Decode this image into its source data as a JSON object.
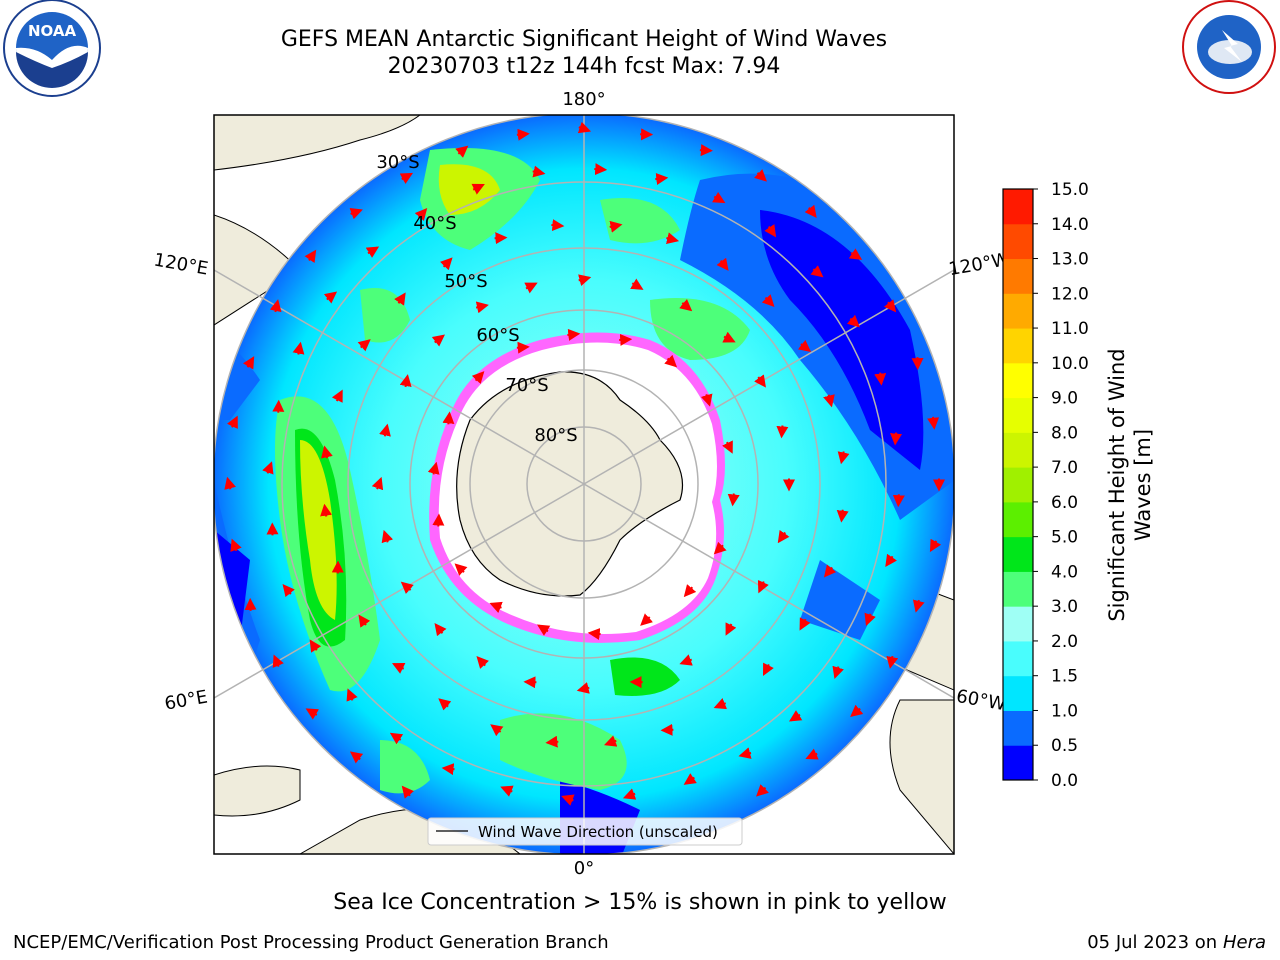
{
  "title": {
    "line1": "GEFS MEAN Antarctic Significant Height of Wind Waves",
    "line2": "20230703 t12z 144h fcst   Max: 7.94"
  },
  "logos": {
    "left": {
      "name": "noaa-logo",
      "text": "NOAA",
      "ring_text": "NATIONAL OCEANIC AND ATMOSPHERIC ADMINISTRATION · U.S. DEPARTMENT OF COMMERCE"
    },
    "right": {
      "name": "nws-logo",
      "ring_text": "NATIONAL WEATHER SERVICE"
    }
  },
  "map": {
    "projection": "south-polar-stereographic",
    "longitude_labels": {
      "top": "180°",
      "left_upper": "120°E",
      "right_upper": "120°W",
      "left_lower": "60°E",
      "right_lower": "60°W",
      "bottom": "0°"
    },
    "latitude_labels": [
      "30°S",
      "40°S",
      "50°S",
      "60°S",
      "70°S",
      "80°S"
    ],
    "legend": "Wind Wave Direction (unscaled)",
    "colors": {
      "land": "#efecdc",
      "ice_edge": "#ff66ff",
      "arrow": "#ff0000",
      "grid": "#b3b3b3"
    }
  },
  "colorbar": {
    "label": "Significant Height of Wind Waves [m]",
    "ticks": [
      "0.0",
      "0.5",
      "1.0",
      "1.5",
      "2.0",
      "3.0",
      "4.0",
      "5.0",
      "6.0",
      "7.0",
      "8.0",
      "9.0",
      "10.0",
      "11.0",
      "12.0",
      "13.0",
      "14.0",
      "15.0"
    ],
    "colors": [
      "#0000ff",
      "#0a6bff",
      "#00e6ff",
      "#49fdfd",
      "#9ffff5",
      "#4dff7a",
      "#00e61a",
      "#5cef00",
      "#a0f000",
      "#ccf500",
      "#e6ff00",
      "#ffff00",
      "#ffd400",
      "#ffaa00",
      "#ff7a00",
      "#ff4a00",
      "#ff1a00"
    ]
  },
  "caption": "Sea Ice Concentration > 15% is shown in pink to yellow",
  "footer": {
    "left": "NCEP/EMC/Verification Post Processing Product Generation Branch",
    "right_date": "05 Jul 2023 on ",
    "right_machine": "Hera"
  }
}
